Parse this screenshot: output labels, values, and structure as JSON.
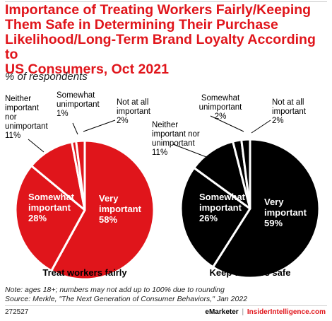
{
  "title": "Importance of Treating Workers Fairly/Keeping\nThem Safe in Determining Their Purchase\nLikelihood/Long-Term Brand Loyalty According to\nUS Consumers, Oct 2021",
  "subtitle": "% of respondents",
  "note": "Note: ages 18+; numbers may not add up to 100% due to rounding",
  "source": "Source: Merkle, \"The Next Generation of Consumer Behaviors,\" Jan 2022",
  "chart_id": "272527",
  "brand": {
    "emarketer": "eMarketer",
    "separator": "|",
    "insider": "InsiderIntelligence.com"
  },
  "colors": {
    "red": "#e0151b",
    "black": "#000000",
    "white": "#ffffff"
  },
  "chart_data": [
    {
      "type": "pie",
      "title": "Treat workers fairly",
      "color": "#e0151b",
      "slices": [
        {
          "label": "Very important",
          "value": 58
        },
        {
          "label": "Somewhat important",
          "value": 28
        },
        {
          "label": "Neither important nor unimportant",
          "value": 11
        },
        {
          "label": "Somewhat unimportant",
          "value": 1
        },
        {
          "label": "Not at all important",
          "value": 2
        }
      ]
    },
    {
      "type": "pie",
      "title": "Keep workers safe",
      "color": "#000000",
      "slices": [
        {
          "label": "Very important",
          "value": 59
        },
        {
          "label": "Somewhat important",
          "value": 26
        },
        {
          "label": "Neither important nor unimportant",
          "value": 11
        },
        {
          "label": "Somewhat unimportant",
          "value": 2
        },
        {
          "label": "Not at all important",
          "value": 2
        }
      ]
    }
  ]
}
